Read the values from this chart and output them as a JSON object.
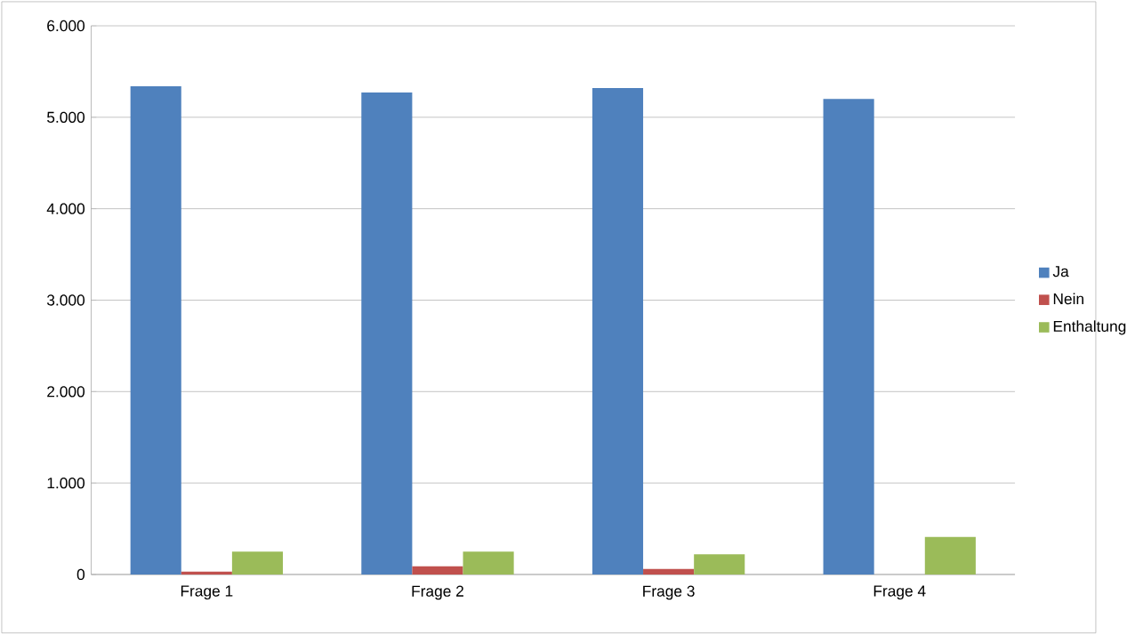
{
  "chart_data": {
    "type": "bar",
    "categories": [
      "Frage 1",
      "Frage 2",
      "Frage 3",
      "Frage 4"
    ],
    "series": [
      {
        "name": "Ja",
        "color": "#4f81bd",
        "values": [
          5340,
          5270,
          5320,
          5200
        ]
      },
      {
        "name": "Nein",
        "color": "#c0504d",
        "values": [
          30,
          90,
          60,
          0
        ]
      },
      {
        "name": "Enthaltung",
        "color": "#9bbb59",
        "values": [
          250,
          250,
          220,
          410
        ]
      }
    ],
    "ylim": [
      0,
      6000
    ],
    "yticks": [
      {
        "value": 0,
        "label": "0"
      },
      {
        "value": 1000,
        "label": "1.000"
      },
      {
        "value": 2000,
        "label": "2.000"
      },
      {
        "value": 3000,
        "label": "3.000"
      },
      {
        "value": 4000,
        "label": "4.000"
      },
      {
        "value": 5000,
        "label": "5.000"
      },
      {
        "value": 6000,
        "label": "6.000"
      }
    ],
    "grid": "y",
    "legend": "right"
  }
}
